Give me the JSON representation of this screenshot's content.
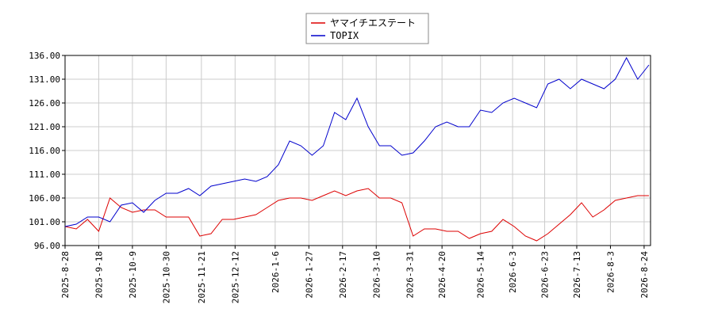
{
  "chart_data": {
    "type": "line",
    "x": [
      "2025-8-28",
      "2025-9-4",
      "2025-9-11",
      "2025-9-18",
      "2025-9-25",
      "2025-10-2",
      "2025-10-9",
      "2025-10-16",
      "2025-10-23",
      "2025-10-30",
      "2025-11-6",
      "2025-11-13",
      "2025-11-20",
      "2025-11-27",
      "2025-12-4",
      "2025-12-11",
      "2025-12-18",
      "2025-12-25",
      "2026-1-1",
      "2026-1-8",
      "2026-1-15",
      "2026-1-22",
      "2026-1-29",
      "2026-2-5",
      "2026-2-12",
      "2026-2-19",
      "2026-2-26",
      "2026-3-5",
      "2026-3-12",
      "2026-3-19",
      "2026-3-26",
      "2026-4-2",
      "2026-4-9",
      "2026-4-16",
      "2026-4-23",
      "2026-4-30",
      "2026-5-7",
      "2026-5-14",
      "2026-5-21",
      "2026-5-28",
      "2026-6-4",
      "2026-6-11",
      "2026-6-18",
      "2026-6-25",
      "2026-7-2",
      "2026-7-9",
      "2026-7-16",
      "2026-7-23",
      "2026-7-30",
      "2026-8-6",
      "2026-8-13",
      "2026-8-20",
      "2026-8-27"
    ],
    "series": [
      {
        "name": "ヤマイチエステート",
        "color": "#dd0000",
        "values": [
          100,
          99.5,
          101.5,
          99,
          106,
          104,
          103,
          103.5,
          103.5,
          102,
          102,
          102,
          98,
          98.5,
          101.5,
          101.5,
          102,
          102.5,
          104,
          105.5,
          106,
          106,
          105.5,
          106.5,
          107.5,
          106.5,
          107.5,
          108,
          106,
          106,
          105,
          98,
          99.5,
          99.5,
          99,
          99,
          97.5,
          98.5,
          99,
          101.5,
          100,
          98,
          97,
          98.5,
          100.5,
          102.5,
          105,
          102,
          103.5,
          105.5,
          106,
          106.5,
          106.5
        ]
      },
      {
        "name": "TOPIX",
        "color": "#0000cc",
        "values": [
          100,
          100.5,
          102,
          102,
          101,
          104.5,
          105,
          103,
          105.5,
          107,
          107,
          108,
          106.5,
          108.5,
          109,
          109.5,
          110,
          109.5,
          110.5,
          113,
          118,
          117,
          115,
          117,
          124,
          122.5,
          127,
          121,
          117,
          117,
          115,
          115.5,
          118,
          121,
          122,
          121,
          121,
          124.5,
          124,
          126,
          127,
          126,
          125,
          130,
          131,
          129,
          131,
          130,
          129,
          131,
          135.5,
          131,
          134
        ]
      }
    ],
    "xlim": [
      "2025-8-28",
      "2026-8-28"
    ],
    "xticks": [
      "2025-8-28",
      "2025-9-18",
      "2025-10-9",
      "2025-10-30",
      "2025-11-21",
      "2025-12-12",
      "2026-1-6",
      "2026-1-27",
      "2026-2-17",
      "2026-3-10",
      "2026-3-31",
      "2026-4-20",
      "2026-5-14",
      "2026-6-3",
      "2026-6-23",
      "2026-7-13",
      "2026-8-3",
      "2026-8-24"
    ],
    "ylim": [
      96,
      136
    ],
    "yticks": [
      {
        "value": 96,
        "label": "96.00"
      },
      {
        "value": 101,
        "label": "101.00"
      },
      {
        "value": 106,
        "label": "106.00"
      },
      {
        "value": 111,
        "label": "111.00"
      },
      {
        "value": 116,
        "label": "116.00"
      },
      {
        "value": 121,
        "label": "121.00"
      },
      {
        "value": 126,
        "label": "126.00"
      },
      {
        "value": 131,
        "label": "131.00"
      },
      {
        "value": 136,
        "label": "136.00"
      }
    ],
    "grid": true,
    "legend": "top"
  }
}
